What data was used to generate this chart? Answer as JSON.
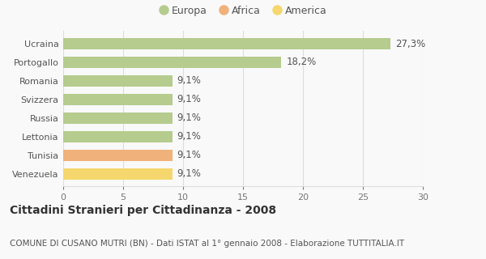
{
  "categories": [
    "Venezuela",
    "Tunisia",
    "Lettonia",
    "Russia",
    "Svizzera",
    "Romania",
    "Portogallo",
    "Ucraina"
  ],
  "values": [
    9.1,
    9.1,
    9.1,
    9.1,
    9.1,
    9.1,
    18.2,
    27.3
  ],
  "labels": [
    "9,1%",
    "9,1%",
    "9,1%",
    "9,1%",
    "9,1%",
    "9,1%",
    "18,2%",
    "27,3%"
  ],
  "colors": [
    "#f5d76e",
    "#f0b27a",
    "#b5cc8e",
    "#b5cc8e",
    "#b5cc8e",
    "#b5cc8e",
    "#b5cc8e",
    "#b5cc8e"
  ],
  "legend": [
    {
      "label": "Europa",
      "color": "#b5cc8e"
    },
    {
      "label": "Africa",
      "color": "#f0b27a"
    },
    {
      "label": "America",
      "color": "#f5d76e"
    }
  ],
  "xlim": [
    0,
    30
  ],
  "xticks": [
    0,
    5,
    10,
    15,
    20,
    25,
    30
  ],
  "title": "Cittadini Stranieri per Cittadinanza - 2008",
  "subtitle": "COMUNE DI CUSANO MUTRI (BN) - Dati ISTAT al 1° gennaio 2008 - Elaborazione TUTTITALIA.IT",
  "background_color": "#f9f9f9",
  "grid_color": "#dddddd",
  "bar_height": 0.6,
  "label_fontsize": 8.5,
  "tick_fontsize": 8,
  "title_fontsize": 10,
  "subtitle_fontsize": 7.5
}
